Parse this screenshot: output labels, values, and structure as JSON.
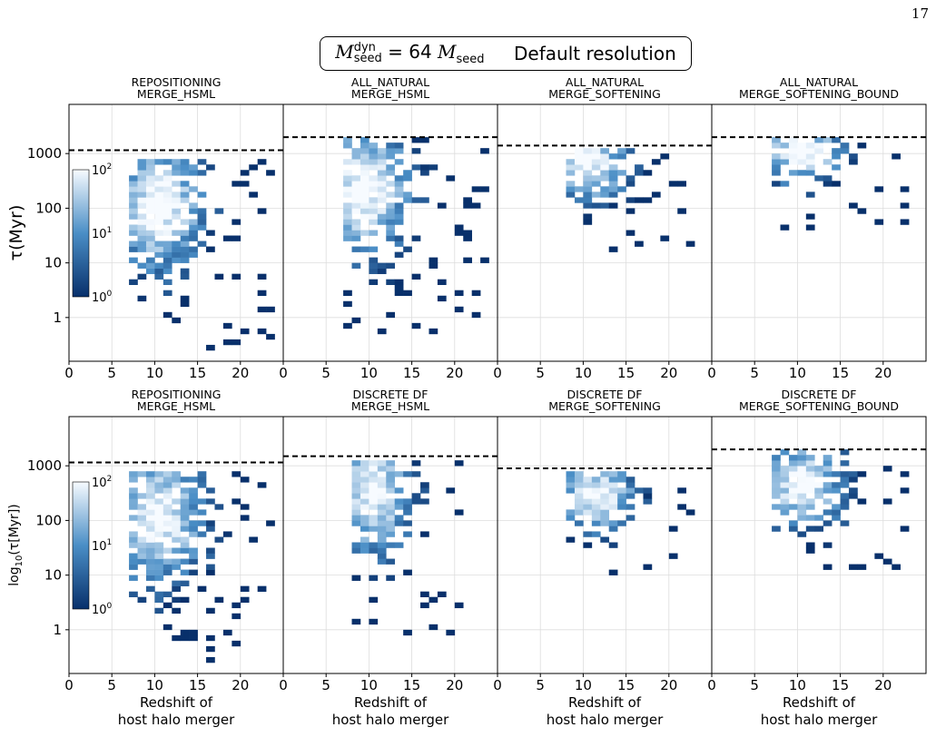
{
  "page_number": "17",
  "header": {
    "mseed_sym": "M",
    "mseed_sub": "seed",
    "mseed_sup": "dyn",
    "equals": "= 64",
    "mseed2_sym": "M",
    "mseed2_sub": "seed",
    "resolution": "Default resolution"
  },
  "colors": {
    "dark": "#08306b",
    "mid": "#4a8ec6",
    "light": "#f7fbff",
    "dashed_line": "#000000"
  },
  "colorbar": {
    "tick_labels": [
      "10",
      "10",
      "10"
    ],
    "tick_exponents": [
      "0",
      "1",
      "2"
    ]
  },
  "rows": [
    {
      "ylabel": "τ(Myr)"
    },
    {
      "ylabel": "log10(τ[Myr])",
      "ylabel_main": "log",
      "ylabel_sub": "10",
      "ylabel_rest": "(τ[Myr])"
    }
  ],
  "xaxis": {
    "label_line1": "Redshift of",
    "label_line2": "host halo merger",
    "ticks": [
      "0",
      "5",
      "10",
      "15",
      "20"
    ],
    "range": [
      0,
      25
    ]
  },
  "yaxis": {
    "ticks": [
      "1",
      "10",
      "100",
      "1000"
    ],
    "range_log10": [
      -0.8,
      3.9
    ]
  },
  "chart_data": [
    {
      "type": "heatmap",
      "row": 0,
      "col": 0,
      "title": [
        "REPOSITIONING",
        "MERGE_HSML"
      ],
      "dashed_y": 1150,
      "x_range": [
        7,
        24
      ],
      "y_range_log10": [
        -0.6,
        2.9
      ],
      "peak": [
        10,
        2.0
      ]
    },
    {
      "type": "heatmap",
      "row": 0,
      "col": 1,
      "title": [
        "ALL_NATURAL",
        "MERGE_HSML"
      ],
      "dashed_y": 2000,
      "x_range": [
        7,
        24
      ],
      "y_range_log10": [
        -0.3,
        3.3
      ],
      "peak": [
        9,
        2.3
      ]
    },
    {
      "type": "heatmap",
      "row": 0,
      "col": 2,
      "title": [
        "ALL_NATURAL",
        "MERGE_SOFTENING"
      ],
      "dashed_y": 1400,
      "x_range": [
        8,
        23
      ],
      "y_range_log10": [
        0.9,
        3.1
      ],
      "peak": [
        10,
        2.8
      ]
    },
    {
      "type": "heatmap",
      "row": 0,
      "col": 3,
      "title": [
        "ALL_NATURAL",
        "MERGE_SOFTENING_BOUND"
      ],
      "dashed_y": 2000,
      "x_range": [
        7,
        23
      ],
      "y_range_log10": [
        1.6,
        3.3
      ],
      "peak": [
        10,
        3.0
      ]
    },
    {
      "type": "heatmap",
      "row": 1,
      "col": 0,
      "title": [
        "REPOSITIONING",
        "MERGE_HSML"
      ],
      "dashed_y": 1150,
      "x_range": [
        7,
        24
      ],
      "y_range_log10": [
        -0.6,
        2.9
      ],
      "peak": [
        10,
        2.0
      ]
    },
    {
      "type": "heatmap",
      "row": 1,
      "col": 1,
      "title": [
        "DISCRETE DF",
        "MERGE_HSML"
      ],
      "dashed_y": 1500,
      "x_range": [
        8,
        22
      ],
      "y_range_log10": [
        -0.3,
        3.1
      ],
      "peak": [
        10,
        2.5
      ]
    },
    {
      "type": "heatmap",
      "row": 1,
      "col": 2,
      "title": [
        "DISCRETE DF",
        "MERGE_SOFTENING"
      ],
      "dashed_y": 900,
      "x_range": [
        8,
        23
      ],
      "y_range_log10": [
        1.0,
        2.9
      ],
      "peak": [
        11,
        2.4
      ]
    },
    {
      "type": "heatmap",
      "row": 1,
      "col": 3,
      "title": [
        "DISCRETE DF",
        "MERGE_SOFTENING_BOUND"
      ],
      "dashed_y": 2000,
      "x_range": [
        7,
        23
      ],
      "y_range_log10": [
        1.1,
        3.3
      ],
      "peak": [
        10,
        2.6
      ]
    }
  ]
}
